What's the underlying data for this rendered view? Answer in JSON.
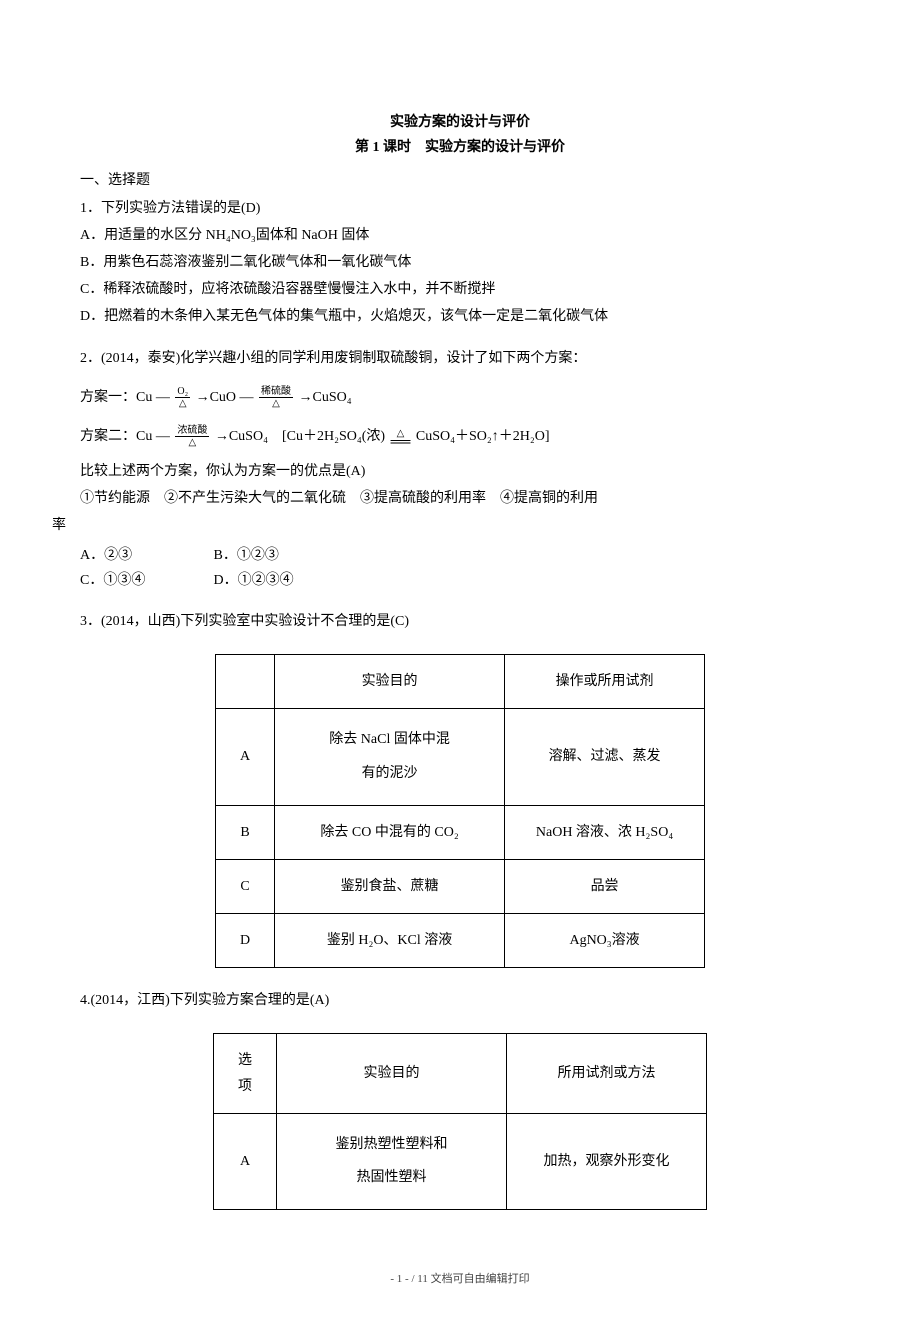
{
  "title": "实验方案的设计与评价",
  "subtitle": "第 1 课时　实验方案的设计与评价",
  "section1": "一、选择题",
  "q1": {
    "stem": "1．下列实验方法错误的是(D)",
    "a": "A．用适量的水区分 NH₄NO₃固体和 NaOH 固体",
    "b": "B．用紫色石蕊溶液鉴别二氧化碳气体和一氧化碳气体",
    "c": "C．稀释浓硫酸时，应将浓硫酸沿容器壁慢慢注入水中，并不断搅拌",
    "d": "D．把燃着的木条伸入某无色气体的集气瓶中，火焰熄灭，该气体一定是二氧化碳气体"
  },
  "q2": {
    "stem": "2．(2014，泰安)化学兴趣小组的同学利用废铜制取硫酸铜，设计了如下两个方案：",
    "f1_prefix": "方案一：Cu ",
    "f1_frac1_top": "O₂",
    "f1_frac1_bot": "△",
    "f1_mid": " →CuO ",
    "f1_frac2_top": "稀硫酸",
    "f1_frac2_bot": "△",
    "f1_suffix": " →CuSO₄",
    "f2_prefix": "方案二：Cu ",
    "f2_frac_top": "浓硫酸",
    "f2_frac_bot": "△",
    "f2_mid": " →CuSO₄　[Cu＋2H₂SO₄(浓) ",
    "f2_arrow_top": "△",
    "f2_arrow_sym": "══",
    "f2_suffix": " CuSO₄＋SO₂↑＋2H₂O]",
    "compare": "比较上述两个方案，你认为方案一的优点是(A)",
    "opts_line": "①节约能源　②不产生污染大气的二氧化硫　③提高硫酸的利用率　④提高铜的利用",
    "opts_line_end": "率",
    "optA": "A．②③",
    "optB": "B．①②③",
    "optC": "C．①③④",
    "optD": "D．①②③④"
  },
  "q3": {
    "stem": "3．(2014，山西)下列实验室中实验设计不合理的是(C)",
    "headers": [
      "",
      "实验目的",
      "操作或所用试剂"
    ],
    "rows": [
      [
        "A",
        "除去 NaCl 固体中混\n有的泥沙",
        "溶解、过滤、蒸发"
      ],
      [
        "B",
        "除去 CO 中混有的 CO₂",
        "NaOH 溶液、浓 H₂SO₄"
      ],
      [
        "C",
        "鉴别食盐、蔗糖",
        "品尝"
      ],
      [
        "D",
        "鉴别 H₂O、KCl 溶液",
        "AgNO₃溶液"
      ]
    ]
  },
  "q4": {
    "stem": "4.(2014，江西)下列实验方案合理的是(A)",
    "headers": [
      "选项",
      "实验目的",
      "所用试剂或方法"
    ],
    "rows": [
      [
        "A",
        "鉴别热塑性塑料和\n热固性塑料",
        "加热，观察外形变化"
      ]
    ]
  },
  "footer": "- 1 -  / 11 文档可自由编辑打印",
  "table1_col_widths": [
    "50px",
    "230px",
    "200px"
  ],
  "table2_col_widths": [
    "60px",
    "230px",
    "200px"
  ]
}
